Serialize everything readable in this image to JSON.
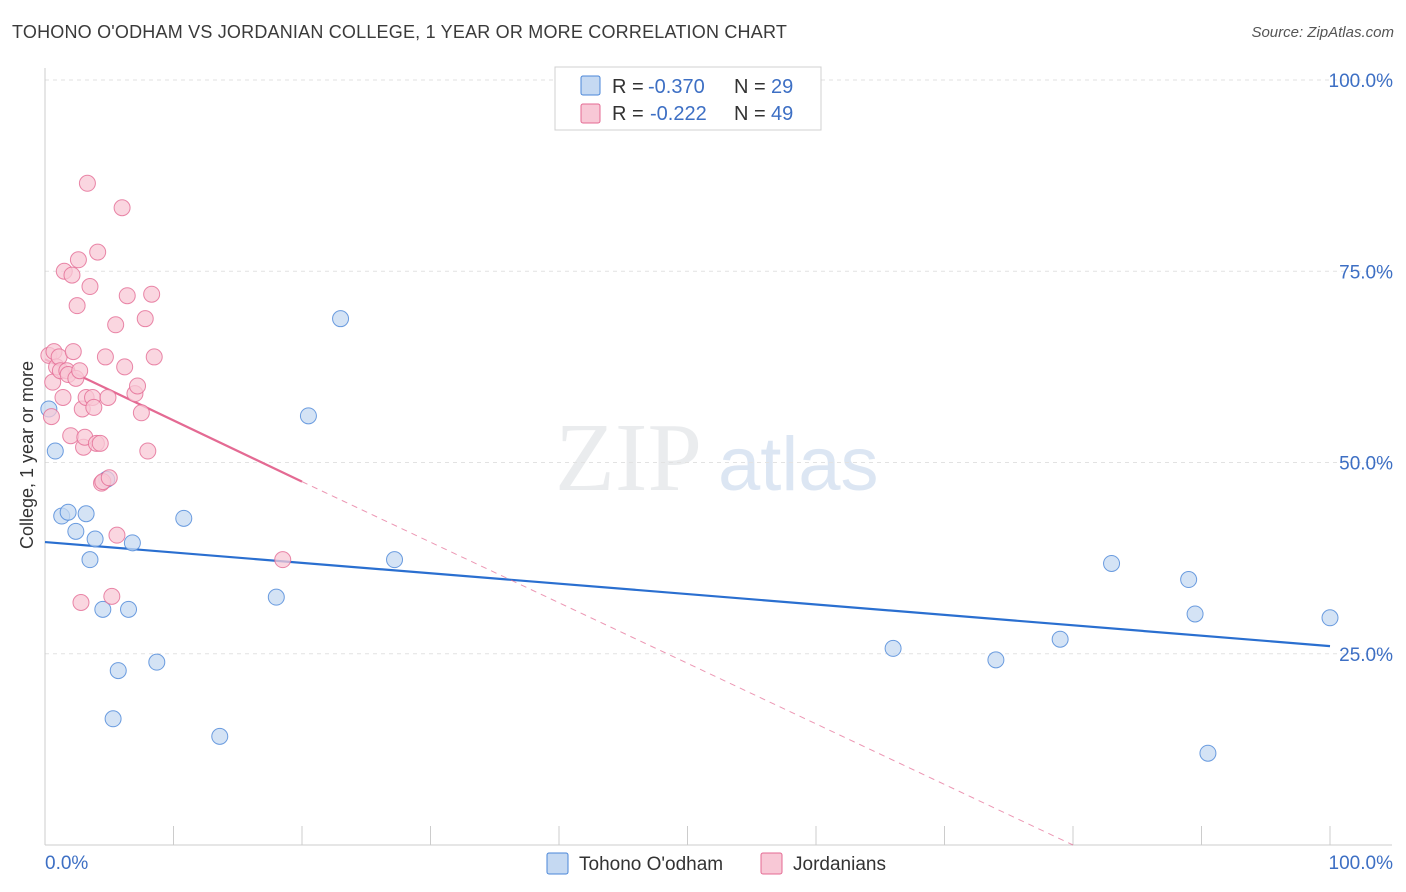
{
  "header": {
    "title": "TOHONO O'ODHAM VS JORDANIAN COLLEGE, 1 YEAR OR MORE CORRELATION CHART",
    "source": "Source: ZipAtlas.com"
  },
  "watermark": {
    "zip": "ZIP",
    "atlas": "atlas"
  },
  "legend": {
    "r_label": "R =",
    "n_label": "N =",
    "rows": [
      {
        "r": "-0.370",
        "n": "29"
      },
      {
        "r": "-0.222",
        "n": "49"
      }
    ]
  },
  "chart_data": {
    "type": "scatter",
    "title": "TOHONO O'ODHAM VS JORDANIAN COLLEGE, 1 YEAR OR MORE CORRELATION CHART",
    "ylabel": "College, 1 year or more",
    "xlabel": "",
    "xlim": [
      0,
      100
    ],
    "ylim": [
      0,
      100
    ],
    "x_tick_labels": [
      "0.0%",
      "100.0%"
    ],
    "y_tick_labels": [
      "100.0%",
      "75.0%",
      "50.0%",
      "25.0%"
    ],
    "y_ticks": [
      100,
      75,
      50,
      25
    ],
    "grid": true,
    "colors": {
      "blue": "#4a86d8",
      "blue_fill": "#c5d9f2",
      "pink": "#e46a93",
      "pink_fill": "#f8c8d6",
      "tick": "#3d6fc4"
    },
    "series": [
      {
        "name": "Tohono O'odham",
        "r": -0.37,
        "n": 29,
        "trend": {
          "x0": 0,
          "y0": 39.6,
          "x1": 100,
          "y1": 26.0
        },
        "points": [
          [
            0.3,
            57.0
          ],
          [
            0.8,
            51.5
          ],
          [
            1.3,
            43.0
          ],
          [
            1.8,
            43.5
          ],
          [
            2.4,
            41.0
          ],
          [
            3.2,
            43.3
          ],
          [
            3.5,
            37.3
          ],
          [
            3.9,
            40.0
          ],
          [
            4.5,
            30.8
          ],
          [
            4.8,
            47.8
          ],
          [
            5.3,
            16.5
          ],
          [
            5.7,
            22.8
          ],
          [
            6.5,
            30.8
          ],
          [
            6.8,
            39.5
          ],
          [
            8.7,
            23.9
          ],
          [
            10.8,
            42.7
          ],
          [
            13.6,
            14.2
          ],
          [
            18.0,
            32.4
          ],
          [
            20.5,
            56.1
          ],
          [
            23.0,
            68.8
          ],
          [
            27.2,
            37.3
          ],
          [
            66.0,
            25.7
          ],
          [
            74.0,
            24.2
          ],
          [
            79.0,
            26.9
          ],
          [
            83.0,
            36.8
          ],
          [
            89.0,
            34.7
          ],
          [
            89.5,
            30.2
          ],
          [
            90.5,
            12.0
          ],
          [
            100.0,
            29.7
          ]
        ]
      },
      {
        "name": "Jordanians",
        "r": -0.222,
        "n": 49,
        "trend": {
          "x0": 0,
          "y0": 63.5,
          "x1": 20.0,
          "y1": 47.5,
          "dash_x1": 80.0,
          "dash_y1": 0
        },
        "points": [
          [
            0.3,
            64.0
          ],
          [
            0.5,
            56.0
          ],
          [
            0.6,
            60.5
          ],
          [
            0.7,
            64.5
          ],
          [
            0.9,
            62.5
          ],
          [
            1.1,
            63.8
          ],
          [
            1.2,
            62.0
          ],
          [
            1.4,
            58.5
          ],
          [
            1.5,
            75.0
          ],
          [
            1.7,
            62.0
          ],
          [
            1.8,
            61.5
          ],
          [
            2.0,
            53.5
          ],
          [
            2.1,
            74.5
          ],
          [
            2.2,
            64.5
          ],
          [
            2.4,
            61.0
          ],
          [
            2.5,
            70.5
          ],
          [
            2.6,
            76.5
          ],
          [
            2.7,
            62.0
          ],
          [
            2.8,
            31.7
          ],
          [
            2.9,
            57.0
          ],
          [
            3.0,
            52.0
          ],
          [
            3.1,
            53.3
          ],
          [
            3.2,
            58.5
          ],
          [
            3.3,
            86.5
          ],
          [
            3.5,
            73.0
          ],
          [
            3.7,
            58.5
          ],
          [
            3.8,
            57.2
          ],
          [
            4.0,
            52.5
          ],
          [
            4.1,
            77.5
          ],
          [
            4.3,
            52.5
          ],
          [
            4.4,
            47.3
          ],
          [
            4.5,
            47.5
          ],
          [
            4.7,
            63.8
          ],
          [
            4.9,
            58.5
          ],
          [
            5.0,
            48.0
          ],
          [
            5.2,
            32.5
          ],
          [
            5.5,
            68.0
          ],
          [
            5.6,
            40.5
          ],
          [
            6.0,
            83.3
          ],
          [
            6.2,
            62.5
          ],
          [
            6.4,
            71.8
          ],
          [
            7.0,
            59.0
          ],
          [
            7.2,
            60.0
          ],
          [
            7.5,
            56.5
          ],
          [
            7.8,
            68.8
          ],
          [
            8.0,
            51.5
          ],
          [
            8.3,
            72.0
          ],
          [
            8.5,
            63.8
          ],
          [
            18.5,
            37.3
          ]
        ]
      }
    ]
  },
  "bottom_legend": [
    "Tohono O'odham",
    "Jordanians"
  ]
}
